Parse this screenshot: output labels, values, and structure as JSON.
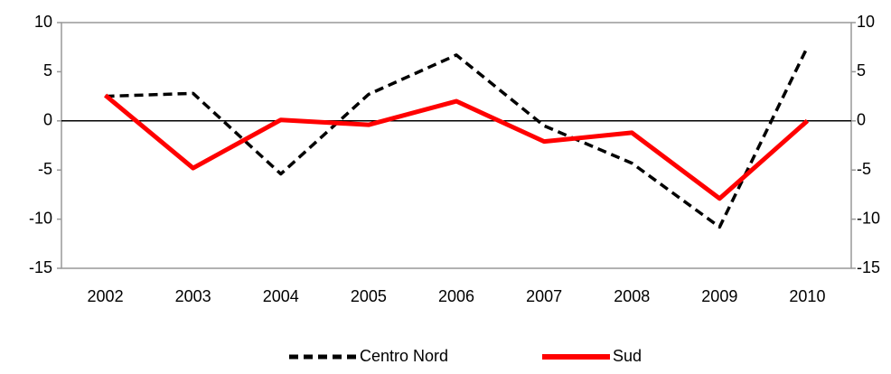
{
  "chart_data": {
    "type": "line",
    "categories": [
      "2002",
      "2003",
      "2004",
      "2005",
      "2006",
      "2007",
      "2008",
      "2009",
      "2010"
    ],
    "series": [
      {
        "name": "Centro Nord",
        "color": "#000000",
        "dash": true,
        "values": [
          2.5,
          2.8,
          -5.4,
          2.7,
          6.7,
          -0.5,
          -4.3,
          -10.8,
          7.5
        ]
      },
      {
        "name": "Sud",
        "color": "#ff0000",
        "dash": false,
        "values": [
          2.6,
          -4.8,
          0.1,
          -0.4,
          2.0,
          -2.1,
          -1.2,
          -7.9,
          0
        ]
      }
    ],
    "ylim": [
      -15,
      10
    ],
    "yticks": [
      -15,
      -10,
      -5,
      0,
      5,
      10
    ],
    "y2lim": [
      -15,
      10
    ],
    "y2ticks": [
      -15,
      -10,
      -5,
      0,
      5,
      10
    ],
    "legend": "bottom"
  }
}
